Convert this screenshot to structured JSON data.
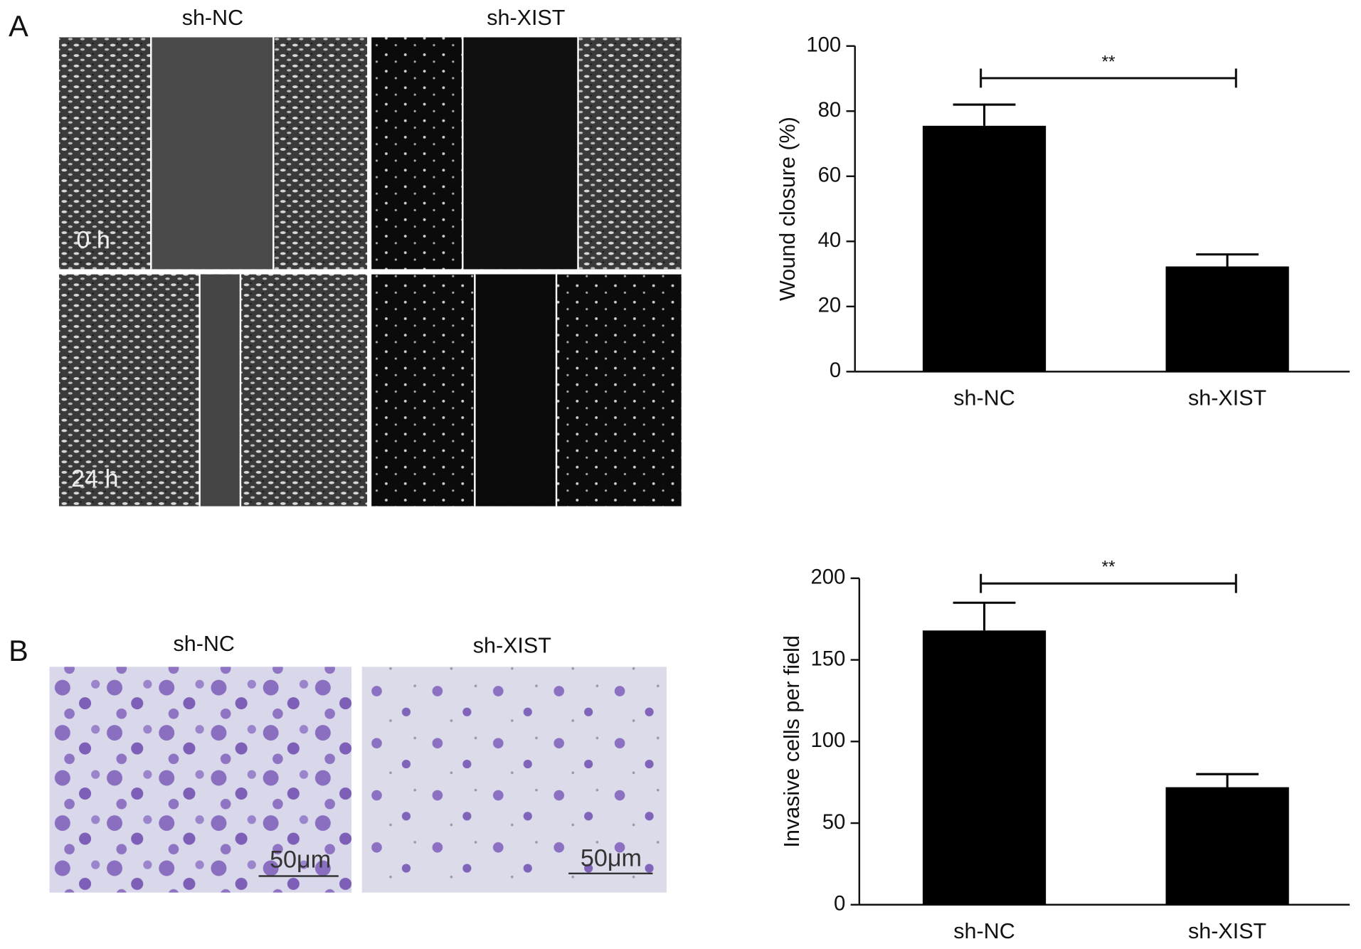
{
  "figure": {
    "panel_labels": [
      "A",
      "B"
    ],
    "wound": {
      "columns": [
        "sh-NC",
        "sh-XIST"
      ],
      "times": [
        "0 h",
        "24 h"
      ]
    },
    "invasion": {
      "columns": [
        "sh-NC",
        "sh-XIST"
      ],
      "scale_bars": [
        "50μm",
        "50μm"
      ]
    }
  },
  "chart_data": [
    {
      "type": "bar",
      "ylabel": "Wound closure (%)",
      "categories": [
        "sh-NC",
        "sh-XIST"
      ],
      "values": [
        75.5,
        32.3
      ],
      "errors": [
        6.5,
        3.7
      ],
      "color": "#000000",
      "ylim": [
        0,
        100
      ],
      "yticks": [
        0,
        20,
        40,
        60,
        80,
        100
      ],
      "annotation": "**"
    },
    {
      "type": "bar",
      "ylabel": "Invasive cells per field",
      "categories": [
        "sh-NC",
        "sh-XIST"
      ],
      "values": [
        168,
        72
      ],
      "errors": [
        17,
        8
      ],
      "color": "#000000",
      "ylim": [
        0,
        200
      ],
      "yticks": [
        0,
        50,
        100,
        150,
        200
      ],
      "annotation": "**"
    }
  ]
}
